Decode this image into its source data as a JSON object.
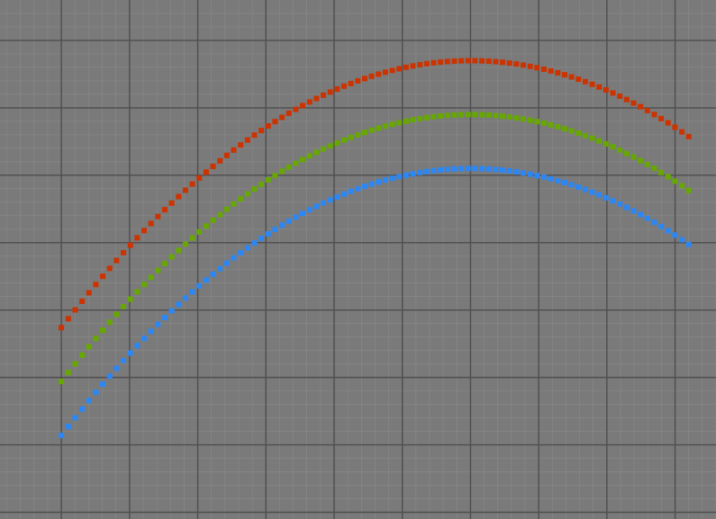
{
  "chart_data": {
    "type": "scatter",
    "title": "",
    "xlabel": "",
    "ylabel": "",
    "xlim": [
      -1.9,
      8.6
    ],
    "ylim": [
      -0.1,
      7.6
    ],
    "grid": true,
    "background_color": "#7a7a7a",
    "grid_major_color": "#4e4e4e",
    "grid_minor_color": "#8a8a8a",
    "marker": "square",
    "series": [
      {
        "color": "#cc3300",
        "curve": {
          "form": "quadratic",
          "a": -0.11,
          "h": 5,
          "k": 6.7
        },
        "x_range": [
          -1,
          8.2
        ],
        "points": 92
      },
      {
        "color": "#66a800",
        "curve": {
          "form": "quadratic",
          "a": -0.11,
          "h": 5,
          "k": 5.9
        },
        "x_range": [
          -1,
          8.2
        ],
        "points": 92
      },
      {
        "color": "#2b87f5",
        "curve": {
          "form": "quadratic",
          "a": -0.11,
          "h": 5,
          "k": 5.1
        },
        "x_range": [
          -1,
          8.2
        ],
        "points": 92
      }
    ]
  }
}
